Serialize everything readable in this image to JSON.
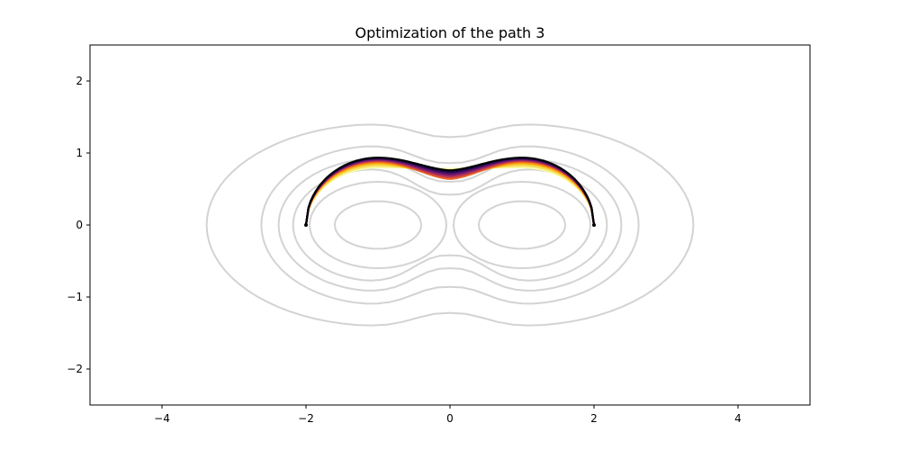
{
  "chart_data": {
    "type": "line",
    "title": "Optimization of the path 3",
    "xlabel": "",
    "ylabel": "",
    "xlim": [
      -5,
      5
    ],
    "ylim": [
      -2.5,
      2.5
    ],
    "xticks": [
      -4,
      -2,
      0,
      2,
      4
    ],
    "yticks": [
      -2,
      -1,
      0,
      1,
      2
    ],
    "xtick_labels": [
      "−4",
      "−2",
      "0",
      "2",
      "4"
    ],
    "ytick_labels": [
      "−2",
      "−1",
      "0",
      "1",
      "2"
    ],
    "grid": false,
    "legend": "none",
    "colormap": "inferno_r",
    "contour_color": "#d3d3d3",
    "endpoints": [
      [
        -2,
        0
      ],
      [
        2,
        0
      ]
    ],
    "contour_levels": [
      {
        "outer_x": 0.6,
        "outer_y": 0.33,
        "neck_y": 0.0
      },
      {
        "outer_x": 0.95,
        "outer_y": 0.6,
        "neck_y": 0.0
      },
      {
        "outer_x": 1.18,
        "outer_y": 0.78,
        "neck_y": 0.42
      },
      {
        "outer_x": 1.38,
        "outer_y": 0.92,
        "neck_y": 0.6
      },
      {
        "outer_x": 1.62,
        "outer_y": 1.1,
        "neck_y": 0.86
      },
      {
        "outer_x": 2.38,
        "outer_y": 1.4,
        "neck_y": 1.22
      }
    ],
    "path_series": [
      {
        "arc_height": 0.935,
        "mid_y": 0.76,
        "color": "#000004"
      },
      {
        "arc_height": 0.93,
        "mid_y": 0.74,
        "color": "#1b0c41"
      },
      {
        "arc_height": 0.92,
        "mid_y": 0.72,
        "color": "#4a0c6b"
      },
      {
        "arc_height": 0.91,
        "mid_y": 0.7,
        "color": "#781c6d"
      },
      {
        "arc_height": 0.9,
        "mid_y": 0.68,
        "color": "#a52c60"
      },
      {
        "arc_height": 0.89,
        "mid_y": 0.66,
        "color": "#cf4446"
      },
      {
        "arc_height": 0.88,
        "mid_y": 0.64,
        "color": "#ed6925"
      },
      {
        "arc_height": 0.86,
        "mid_y": 0.66,
        "color": "#fb9b06"
      },
      {
        "arc_height": 0.84,
        "mid_y": 0.7,
        "color": "#f7d13d"
      },
      {
        "arc_height": 0.82,
        "mid_y": 0.74,
        "color": "#f6e16a"
      },
      {
        "arc_height": 0.8,
        "mid_y": 0.78,
        "color": "#fcffa4"
      }
    ]
  }
}
